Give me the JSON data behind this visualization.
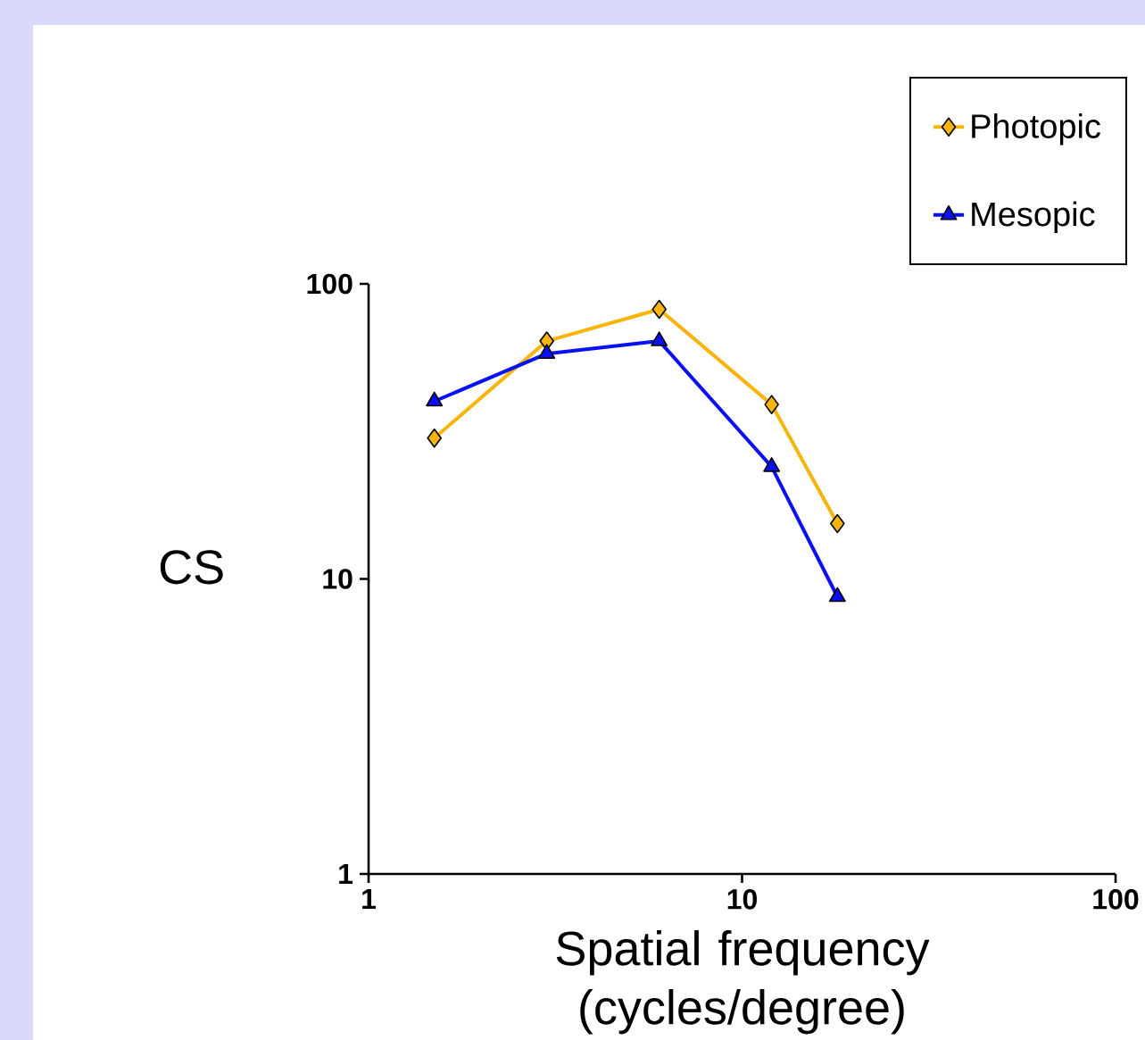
{
  "chart_data": {
    "type": "line",
    "xlabel": "Spatial frequency (cycles/degree)",
    "ylabel": "CS",
    "x": [
      1.5,
      3,
      6,
      12,
      18
    ],
    "series": [
      {
        "name": "Photopic",
        "color": "#f7b40a",
        "marker": "diamond",
        "values": [
          30,
          64,
          82,
          39,
          15.4
        ]
      },
      {
        "name": "Mesopic",
        "color": "#0a10f5",
        "marker": "triangle",
        "values": [
          40,
          58,
          64,
          24,
          8.7
        ]
      }
    ],
    "log": "xy",
    "xlim": [
      1,
      100
    ],
    "ylim": [
      1,
      100
    ],
    "xticks": [
      1,
      10,
      100
    ],
    "yticks": [
      1,
      10,
      100
    ],
    "grid": false,
    "legend": "top right"
  }
}
